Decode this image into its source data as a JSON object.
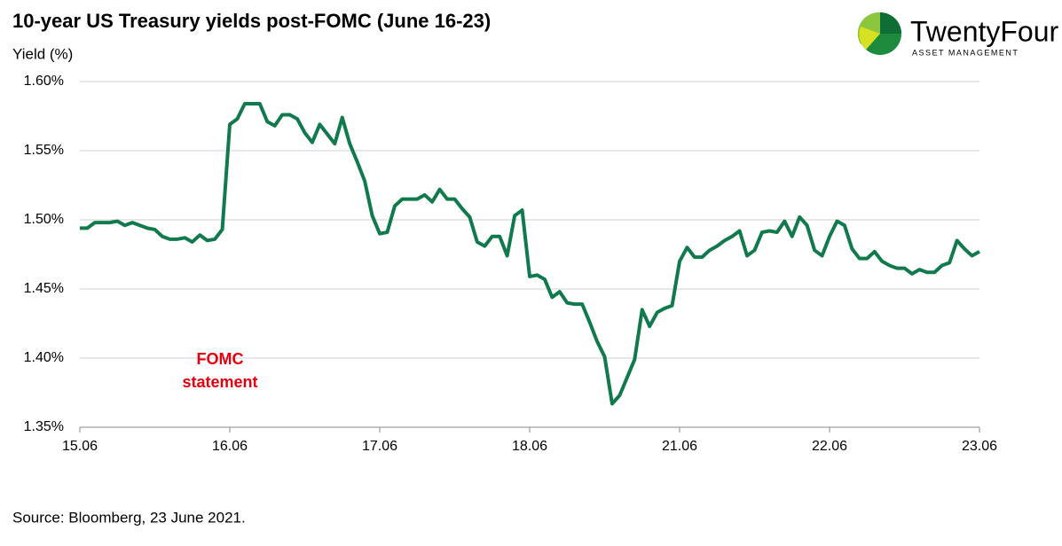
{
  "chart_data": {
    "type": "line",
    "title": "10-year US Treasury yields post-FOMC (June 16-23)",
    "y_label": "Yield (%)",
    "source": "Source: Bloomberg, 23 June 2021.",
    "logo": {
      "name": "TwentyFour",
      "tagline": "ASSET MANAGEMENT"
    },
    "annotation": {
      "lines": [
        "FOMC",
        "statement"
      ],
      "color": "#e3000f"
    },
    "x": [
      0,
      1,
      2,
      3,
      4,
      5,
      6,
      7,
      8,
      9,
      10,
      11,
      12,
      13,
      14,
      15,
      16,
      17,
      18,
      19,
      20,
      21,
      22,
      23,
      24,
      25,
      26,
      27,
      28,
      29,
      30,
      31,
      32,
      33,
      34,
      35,
      36,
      37,
      38,
      39,
      40,
      41,
      42,
      43,
      44,
      45,
      46,
      47,
      48,
      49,
      50,
      51,
      52,
      53,
      54,
      55,
      56,
      57,
      58,
      59,
      60,
      61,
      62,
      63,
      64,
      65,
      66,
      67,
      68,
      69,
      70,
      71,
      72,
      73,
      74,
      75,
      76,
      77,
      78,
      79,
      80,
      81,
      82,
      83,
      84,
      85,
      86,
      87,
      88,
      89,
      90,
      91,
      92,
      93,
      94,
      95,
      96,
      97,
      98,
      99,
      100,
      101,
      102,
      103,
      104,
      105,
      106,
      107,
      108,
      109,
      110,
      111,
      112,
      113,
      114,
      115,
      116,
      117,
      118,
      119,
      120
    ],
    "series": [
      {
        "name": "10-year US Treasury yield",
        "color": "#117a4d",
        "values": [
          1.494,
          1.494,
          1.498,
          1.498,
          1.498,
          1.499,
          1.496,
          1.498,
          1.496,
          1.494,
          1.493,
          1.488,
          1.486,
          1.486,
          1.487,
          1.484,
          1.489,
          1.485,
          1.486,
          1.493,
          1.569,
          1.573,
          1.584,
          1.584,
          1.584,
          1.571,
          1.568,
          1.576,
          1.576,
          1.573,
          1.563,
          1.556,
          1.569,
          1.562,
          1.555,
          1.574,
          1.555,
          1.542,
          1.528,
          1.503,
          1.49,
          1.491,
          1.51,
          1.515,
          1.515,
          1.515,
          1.518,
          1.513,
          1.522,
          1.515,
          1.515,
          1.508,
          1.502,
          1.484,
          1.481,
          1.488,
          1.488,
          1.474,
          1.503,
          1.507,
          1.459,
          1.46,
          1.457,
          1.444,
          1.448,
          1.44,
          1.439,
          1.439,
          1.426,
          1.412,
          1.401,
          1.367,
          1.373,
          1.386,
          1.399,
          1.435,
          1.423,
          1.433,
          1.436,
          1.438,
          1.47,
          1.48,
          1.473,
          1.473,
          1.478,
          1.481,
          1.485,
          1.488,
          1.492,
          1.474,
          1.478,
          1.491,
          1.492,
          1.491,
          1.499,
          1.488,
          1.502,
          1.496,
          1.478,
          1.474,
          1.488,
          1.499,
          1.496,
          1.479,
          1.472,
          1.472,
          1.477,
          1.47,
          1.467,
          1.465,
          1.465,
          1.461,
          1.464,
          1.462,
          1.462,
          1.467,
          1.469,
          1.485,
          1.479,
          1.474,
          1.477
        ]
      }
    ],
    "xlim": [
      0,
      120
    ],
    "xticks": [
      {
        "value": 0,
        "label": "15.06"
      },
      {
        "value": 20,
        "label": "16.06"
      },
      {
        "value": 40,
        "label": "17.06"
      },
      {
        "value": 60,
        "label": "18.06"
      },
      {
        "value": 80,
        "label": "21.06"
      },
      {
        "value": 100,
        "label": "22.06"
      },
      {
        "value": 120,
        "label": "23.06"
      }
    ],
    "ylim": [
      1.35,
      1.6
    ],
    "yticks": [
      {
        "value": 1.35,
        "label": "1.35%"
      },
      {
        "value": 1.4,
        "label": "1.40%"
      },
      {
        "value": 1.45,
        "label": "1.45%"
      },
      {
        "value": 1.5,
        "label": "1.50%"
      },
      {
        "value": 1.55,
        "label": "1.55%"
      },
      {
        "value": 1.6,
        "label": "1.60%"
      }
    ],
    "grid": true
  }
}
